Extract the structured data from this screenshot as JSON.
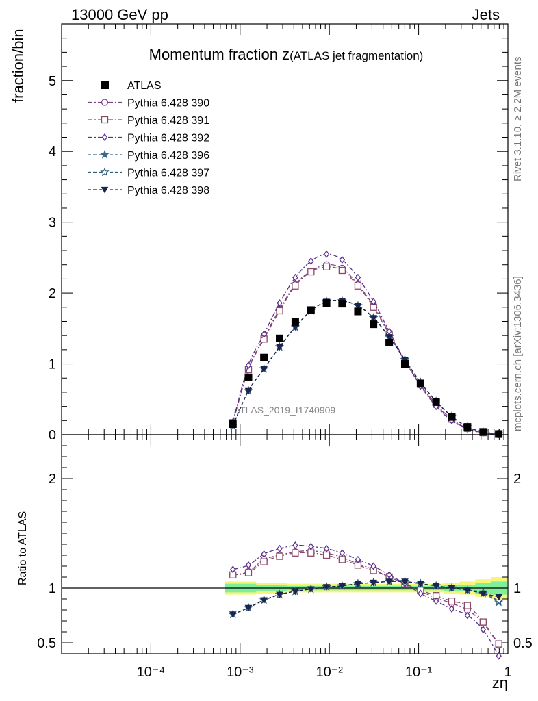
{
  "header": {
    "left": "13000 GeV pp",
    "right": "Jets"
  },
  "side_text": {
    "rivet": "Rivet 3.1.10, ≥ 2.2M events",
    "mcplots": "mcplots.cern.ch [arXiv:1306.3436]"
  },
  "chart_data": {
    "type": "line",
    "title_main": "Momentum fraction z",
    "title_sub": "(ATLAS jet fragmentation)",
    "watermark": "ATLAS_2019_I1740909",
    "xlabel": "zη",
    "x_scale": "log",
    "xlim": [
      1e-05,
      1
    ],
    "x_tick_labels": [
      "10⁻⁴",
      "10⁻³",
      "10⁻²",
      "10⁻¹",
      "1"
    ],
    "x_tick_values": [
      0.0001,
      0.001,
      0.01,
      0.1,
      1
    ],
    "main_panel": {
      "ylabel": "fraction/bin",
      "ylim": [
        0,
        5.8
      ],
      "y_tick_labels": [
        "0",
        "1",
        "2",
        "3",
        "4",
        "5"
      ],
      "y_tick_values": [
        0,
        1,
        2,
        3,
        4,
        5
      ]
    },
    "ratio_panel": {
      "ylabel": "Ratio to ATLAS",
      "ylim": [
        0.4,
        2.4
      ],
      "y_tick_labels": [
        "0.5",
        "1",
        "2"
      ],
      "y_tick_values": [
        0.5,
        1,
        2
      ]
    },
    "legend_position": "top-left",
    "x": [
      0.00083,
      0.00124,
      0.00185,
      0.00277,
      0.00415,
      0.00622,
      0.0093,
      0.0139,
      0.0209,
      0.0312,
      0.0468,
      0.0701,
      0.105,
      0.157,
      0.235,
      0.352,
      0.528,
      0.79
    ],
    "data": {
      "name": "ATLAS",
      "values": [
        0.15,
        0.81,
        1.09,
        1.36,
        1.59,
        1.76,
        1.86,
        1.85,
        1.74,
        1.56,
        1.3,
        1.0,
        0.72,
        0.46,
        0.25,
        0.11,
        0.04,
        0.01
      ],
      "band_inner": [
        0.04,
        0.04,
        0.03,
        0.03,
        0.02,
        0.02,
        0.02,
        0.02,
        0.02,
        0.02,
        0.02,
        0.02,
        0.02,
        0.02,
        0.03,
        0.03,
        0.05,
        0.06
      ],
      "band_outer": [
        0.06,
        0.06,
        0.05,
        0.05,
        0.04,
        0.04,
        0.04,
        0.04,
        0.04,
        0.04,
        0.04,
        0.04,
        0.04,
        0.04,
        0.05,
        0.06,
        0.08,
        0.1
      ]
    },
    "series": [
      {
        "name": "Pythia 6.428 390",
        "marker": "circle",
        "dash": "dashdot",
        "color": "#7e3f87",
        "values": [
          0.17,
          0.93,
          1.37,
          1.77,
          2.12,
          2.31,
          2.4,
          2.35,
          2.12,
          1.82,
          1.43,
          1.04,
          0.7,
          0.42,
          0.21,
          0.085,
          0.028,
          0.005
        ],
        "ratio": [
          1.12,
          1.15,
          1.26,
          1.3,
          1.33,
          1.34,
          1.32,
          1.28,
          1.22,
          1.17,
          1.1,
          1.04,
          0.97,
          0.91,
          0.86,
          0.8,
          0.68,
          0.48
        ]
      },
      {
        "name": "Pythia 6.428 391",
        "marker": "square",
        "dash": "dashdot",
        "color": "#8a4a66",
        "values": [
          0.17,
          0.92,
          1.35,
          1.75,
          2.1,
          2.3,
          2.37,
          2.32,
          2.1,
          1.8,
          1.42,
          1.04,
          0.71,
          0.43,
          0.22,
          0.09,
          0.029,
          0.005
        ],
        "ratio": [
          1.12,
          1.14,
          1.24,
          1.29,
          1.32,
          1.32,
          1.3,
          1.26,
          1.21,
          1.16,
          1.1,
          1.04,
          0.98,
          0.93,
          0.88,
          0.84,
          0.69,
          0.49
        ]
      },
      {
        "name": "Pythia 6.428 392",
        "marker": "diamond",
        "dash": "dashdot",
        "color": "#5a2f8a",
        "values": [
          0.18,
          0.98,
          1.42,
          1.86,
          2.22,
          2.45,
          2.55,
          2.47,
          2.22,
          1.88,
          1.46,
          1.05,
          0.69,
          0.4,
          0.2,
          0.08,
          0.025,
          0.004
        ],
        "ratio": [
          1.17,
          1.21,
          1.31,
          1.36,
          1.39,
          1.38,
          1.36,
          1.32,
          1.26,
          1.2,
          1.12,
          1.04,
          0.95,
          0.88,
          0.81,
          0.75,
          0.62,
          0.38
        ]
      },
      {
        "name": "Pythia 6.428 396",
        "marker": "star-filled",
        "dash": "dashed",
        "color": "#3b6a8a",
        "values": [
          0.13,
          0.62,
          0.93,
          1.24,
          1.52,
          1.75,
          1.88,
          1.89,
          1.82,
          1.65,
          1.38,
          1.06,
          0.74,
          0.47,
          0.26,
          0.11,
          0.04,
          0.009
        ],
        "ratio": [
          0.76,
          0.82,
          0.89,
          0.94,
          0.97,
          0.99,
          1.01,
          1.02,
          1.04,
          1.05,
          1.06,
          1.06,
          1.04,
          1.02,
          1.0,
          0.98,
          0.95,
          0.87
        ]
      },
      {
        "name": "Pythia 6.428 397",
        "marker": "star-open",
        "dash": "dashed",
        "color": "#2f5a78",
        "values": [
          0.13,
          0.62,
          0.93,
          1.24,
          1.52,
          1.75,
          1.88,
          1.89,
          1.82,
          1.65,
          1.38,
          1.06,
          0.74,
          0.47,
          0.26,
          0.11,
          0.04,
          0.009
        ],
        "ratio": [
          0.76,
          0.82,
          0.89,
          0.94,
          0.97,
          0.99,
          1.01,
          1.02,
          1.04,
          1.05,
          1.06,
          1.06,
          1.04,
          1.02,
          1.0,
          0.98,
          0.96,
          0.88
        ]
      },
      {
        "name": "Pythia 6.428 398",
        "marker": "triangle-down",
        "dash": "dashed",
        "color": "#1a2550",
        "values": [
          0.13,
          0.62,
          0.93,
          1.24,
          1.52,
          1.75,
          1.88,
          1.89,
          1.82,
          1.65,
          1.38,
          1.06,
          0.74,
          0.47,
          0.26,
          0.11,
          0.04,
          0.009
        ],
        "ratio": [
          0.76,
          0.82,
          0.89,
          0.94,
          0.97,
          0.99,
          1.01,
          1.02,
          1.04,
          1.05,
          1.06,
          1.06,
          1.04,
          1.02,
          1.0,
          0.98,
          0.95,
          0.92
        ]
      }
    ],
    "colors": {
      "band_inner": "#7ff09a",
      "band_outer": "#f5f57a",
      "data_marker": "#000000"
    }
  }
}
